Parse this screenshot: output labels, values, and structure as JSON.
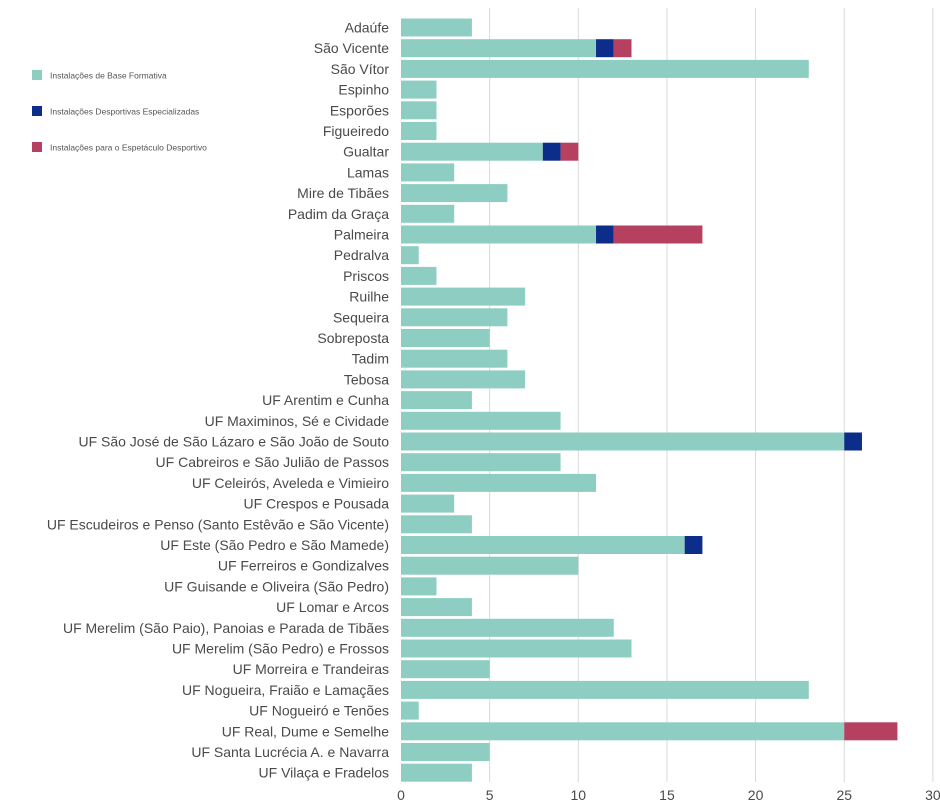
{
  "chart_data": {
    "type": "bar",
    "orientation": "horizontal",
    "stacked": true,
    "title": "",
    "xlabel": "",
    "ylabel": "",
    "xlim": [
      0,
      30
    ],
    "x_ticks": [
      "0",
      "5",
      "10",
      "15",
      "20",
      "25",
      "30"
    ],
    "grid": "vertical",
    "legend_position": "top-left",
    "categories": [
      "Adaúfe",
      "São Vicente",
      "São Vítor",
      "Espinho",
      "Esporões",
      "Figueiredo",
      "Gualtar",
      "Lamas",
      "Mire de Tibães",
      "Padim da Graça",
      "Palmeira",
      "Pedralva",
      "Priscos",
      "Ruilhe",
      "Sequeira",
      "Sobreposta",
      "Tadim",
      "Tebosa",
      "UF Arentim e Cunha",
      "UF Maximinos, Sé e Cividade",
      "UF São José de São Lázaro e São João de Souto",
      "UF Cabreiros e São Julião de Passos",
      "UF Celeirós, Aveleda e Vimieiro",
      "UF Crespos e Pousada",
      "UF Escudeiros e Penso (Santo Estêvão e São Vicente)",
      "UF Este (São Pedro e São Mamede)",
      "UF Ferreiros e Gondizalves",
      "UF Guisande e Oliveira (São Pedro)",
      "UF Lomar e Arcos",
      "UF Merelim (São Paio), Panoias e Parada de Tibães",
      "UF Merelim (São Pedro) e Frossos",
      "UF Morreira e Trandeiras",
      "UF Nogueira, Fraião e Lamaçães",
      "UF Nogueiró e Tenões",
      "UF Real, Dume e Semelhe",
      "UF Santa Lucrécia A. e Navarra",
      "UF Vilaça e Fradelos"
    ],
    "series": [
      {
        "name": "Instalações de Base Formativa",
        "color": "#8ecdc2",
        "values": [
          4,
          11,
          23,
          2,
          2,
          2,
          8,
          3,
          6,
          3,
          11,
          1,
          2,
          7,
          6,
          5,
          6,
          7,
          4,
          9,
          25,
          9,
          11,
          3,
          4,
          16,
          10,
          2,
          4,
          12,
          13,
          5,
          23,
          1,
          25,
          5,
          4
        ]
      },
      {
        "name": "Instalações Desportivas Especializadas",
        "color": "#0c2e8a",
        "values": [
          0,
          1,
          0,
          0,
          0,
          0,
          1,
          0,
          0,
          0,
          1,
          0,
          0,
          0,
          0,
          0,
          0,
          0,
          0,
          0,
          1,
          0,
          0,
          0,
          0,
          1,
          0,
          0,
          0,
          0,
          0,
          0,
          0,
          0,
          0,
          0,
          0
        ]
      },
      {
        "name": "Instalações para o Espetáculo Desportivo",
        "color": "#b5405f",
        "values": [
          0,
          1,
          0,
          0,
          0,
          0,
          1,
          0,
          0,
          0,
          5,
          0,
          0,
          0,
          0,
          0,
          0,
          0,
          0,
          0,
          0,
          0,
          0,
          0,
          0,
          0,
          0,
          0,
          0,
          0,
          0,
          0,
          0,
          0,
          3,
          0,
          0
        ]
      }
    ]
  }
}
